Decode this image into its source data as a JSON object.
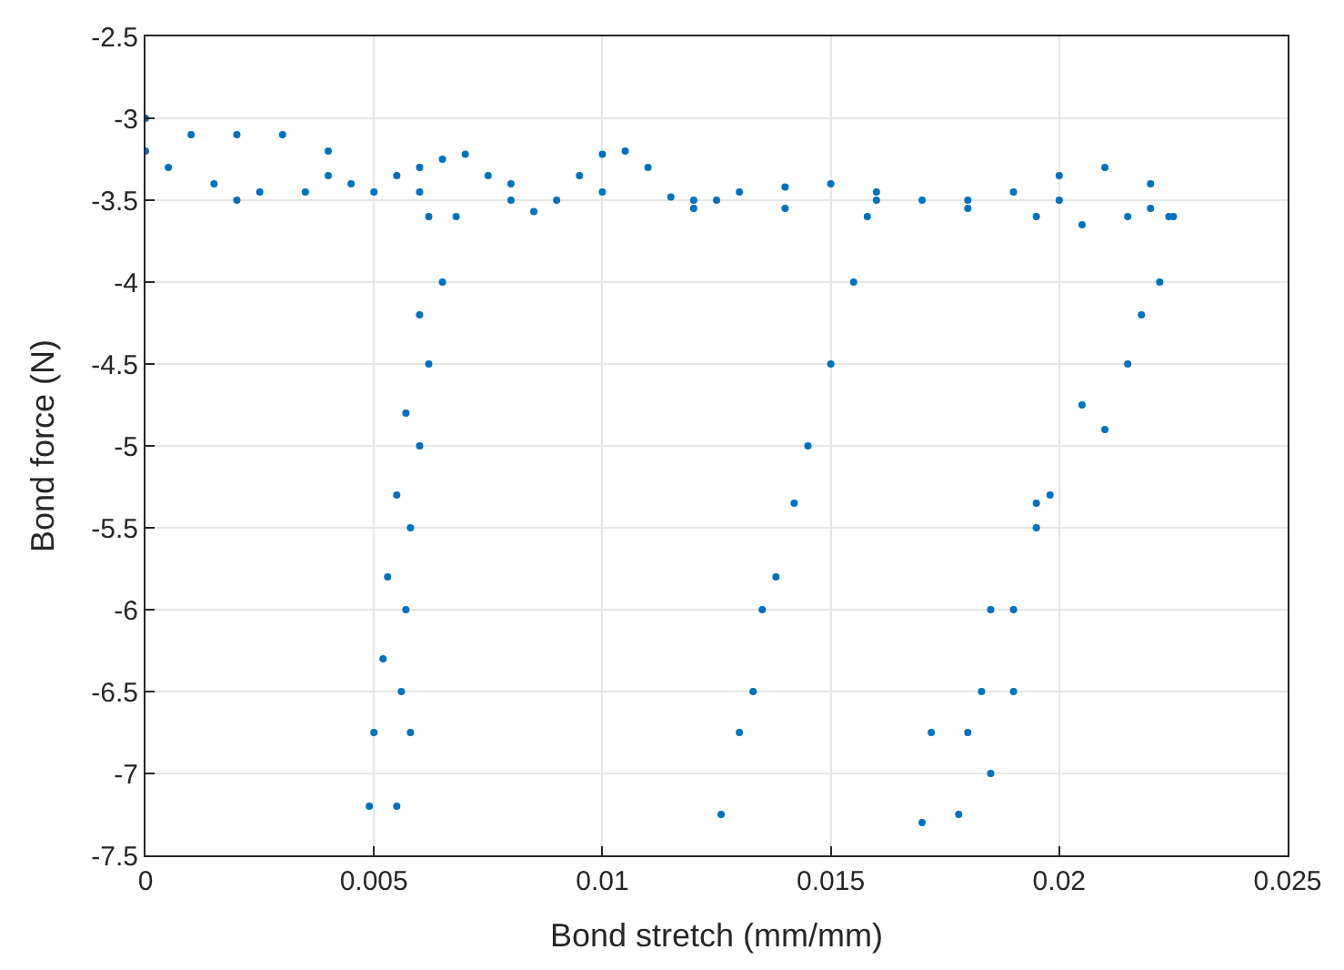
{
  "chart_data": {
    "type": "scatter",
    "xlabel": "Bond stretch (mm/mm)",
    "ylabel": "Bond force (N)",
    "xlim": [
      0,
      0.025
    ],
    "xticks": [
      0,
      0.005,
      0.01,
      0.015,
      0.02,
      0.025
    ],
    "ylim": [
      -7.5,
      -2.5
    ],
    "yticks": [
      -7.5,
      -7,
      -6.5,
      -6,
      -5.5,
      -5,
      -4.5,
      -4,
      -3.5,
      -3,
      -2.5
    ],
    "grid": true,
    "marker": "circle",
    "series": [
      {
        "color": "#0072bd",
        "x": [
          0,
          0.0005,
          0.001,
          0.0015,
          0.002,
          0.0025,
          0.003,
          0.0035,
          0.004,
          0.0045,
          0.005,
          0.0055,
          0.006,
          0.0065,
          0.007,
          0.0075,
          0.008,
          0.0085,
          0.009,
          0.0095,
          0.01,
          0.0105,
          0.011,
          0.0115,
          0.012,
          0.0125,
          0.013,
          0.014,
          0.015,
          0.016,
          0.017,
          0.018,
          0.019,
          0.0195,
          0.02,
          0.0205,
          0.021,
          0.0215,
          0.022,
          0.0225
        ],
        "values": [
          -3.0,
          -3.3,
          -3.1,
          -3.4,
          -3.1,
          -3.45,
          -3.1,
          -3.45,
          -3.2,
          -3.4,
          -3.45,
          -3.35,
          -3.3,
          -3.25,
          -3.22,
          -3.35,
          -3.5,
          -3.57,
          -3.5,
          -3.35,
          -3.22,
          -3.2,
          -3.3,
          -3.48,
          -3.55,
          -3.5,
          -3.45,
          -3.42,
          -3.4,
          -3.45,
          -3.5,
          -3.5,
          -3.45,
          -3.6,
          -3.35,
          -3.65,
          -3.3,
          -3.6,
          -3.4,
          -3.6
        ]
      },
      {
        "color": "#0072bd",
        "x": [
          0,
          0.002,
          0.004,
          0.006,
          0.008,
          0.01,
          0.012,
          0.014,
          0.016,
          0.018,
          0.02,
          0.022
        ],
        "values": [
          -3.2,
          -3.5,
          -3.35,
          -3.45,
          -3.4,
          -3.45,
          -3.5,
          -3.55,
          -3.5,
          -3.55,
          -3.5,
          -3.55
        ]
      },
      {
        "color": "#0072bd",
        "x": [
          0.0068,
          0.0065,
          0.0062,
          0.006,
          0.0058,
          0.0057,
          0.0056,
          0.0058,
          0.0055
        ],
        "values": [
          -3.6,
          -4.0,
          -4.5,
          -5.0,
          -5.5,
          -6.0,
          -6.5,
          -6.75,
          -7.2
        ]
      },
      {
        "color": "#0072bd",
        "x": [
          0.0062,
          0.006,
          0.0057,
          0.0055,
          0.0053,
          0.0052,
          0.005,
          0.0049
        ],
        "values": [
          -3.6,
          -4.2,
          -4.8,
          -5.3,
          -5.8,
          -6.3,
          -6.75,
          -7.2
        ]
      },
      {
        "color": "#0072bd",
        "x": [
          0.0158,
          0.0155,
          0.015,
          0.0145,
          0.0142,
          0.0138,
          0.0135,
          0.0133,
          0.013,
          0.0126
        ],
        "values": [
          -3.6,
          -4.0,
          -4.5,
          -5.0,
          -5.35,
          -5.8,
          -6.0,
          -6.5,
          -6.75,
          -7.25
        ]
      },
      {
        "color": "#0072bd",
        "x": [
          0.0224,
          0.0222,
          0.0215,
          0.0205,
          0.0198,
          0.0195,
          0.019,
          0.0185,
          0.0183,
          0.018,
          0.0172,
          0.017
        ],
        "values": [
          -3.6,
          -4.0,
          -4.5,
          -4.75,
          -5.3,
          -5.5,
          -6.0,
          -6.0,
          -6.5,
          -6.75,
          -6.75,
          -7.3
        ]
      },
      {
        "color": "#0072bd",
        "x": [
          0.0218,
          0.021,
          0.0195,
          0.019,
          0.0185,
          0.0178
        ],
        "values": [
          -4.2,
          -4.9,
          -5.35,
          -6.5,
          -7.0,
          -7.25
        ]
      }
    ]
  }
}
